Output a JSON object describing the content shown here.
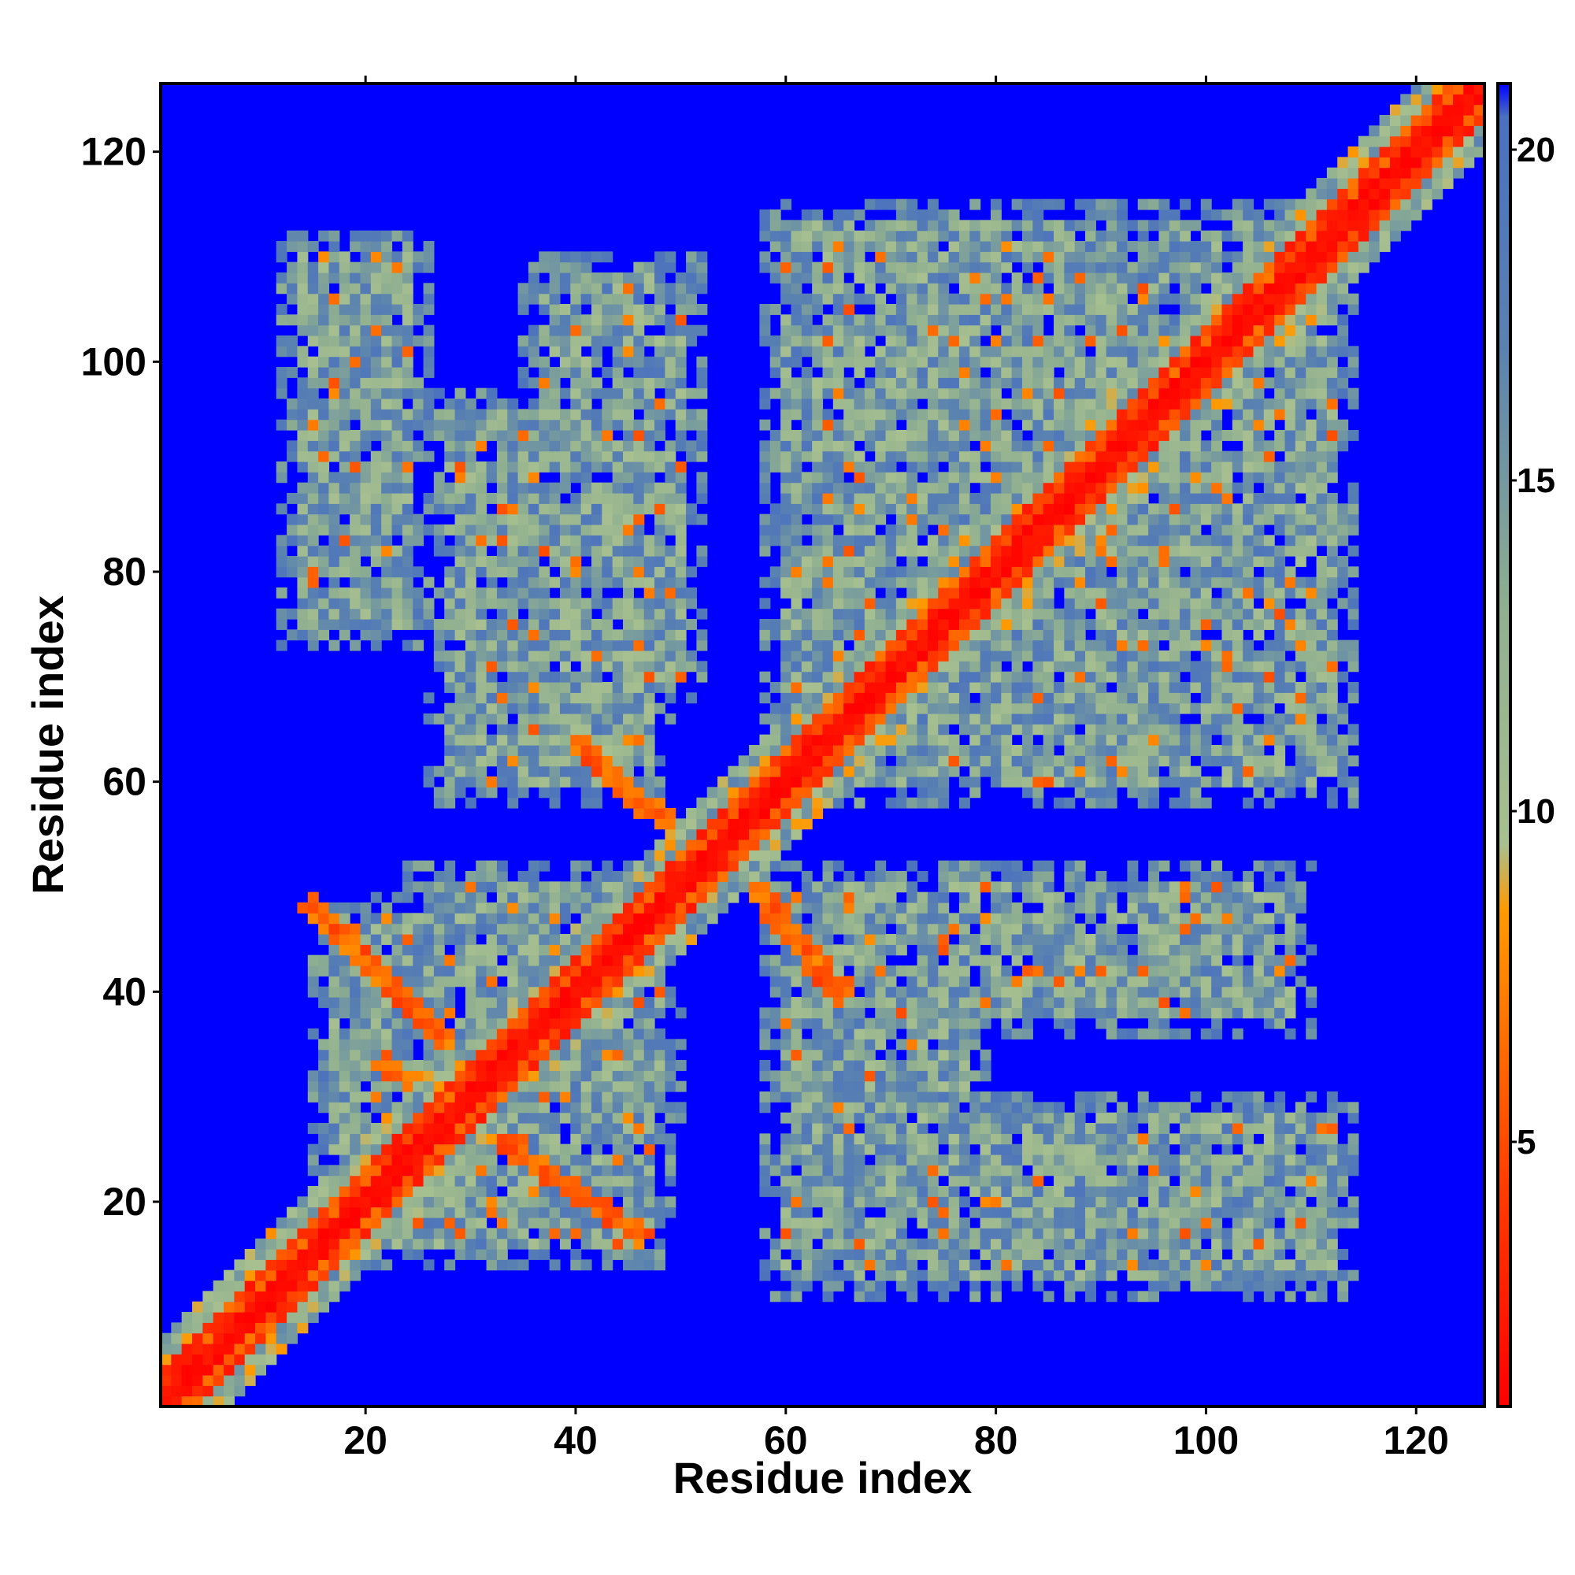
{
  "chart_data": {
    "type": "heatmap",
    "title": "",
    "xlabel": "Residue index",
    "ylabel": "Residue index",
    "xlim": [
      1,
      126
    ],
    "ylim": [
      1,
      126
    ],
    "n_residues": 126,
    "x_ticks": [
      20,
      40,
      60,
      80,
      100,
      120
    ],
    "y_ticks": [
      20,
      40,
      60,
      80,
      100,
      120
    ],
    "colorbar": {
      "range": [
        1,
        21
      ],
      "ticks": [
        5,
        10,
        15,
        20
      ],
      "stops": [
        {
          "value": 1,
          "color": "#ff0000"
        },
        {
          "value": 4.5,
          "color": "#ff4000"
        },
        {
          "value": 8.5,
          "color": "#ff9a00"
        },
        {
          "value": 9.5,
          "color": "#a8c090"
        },
        {
          "value": 13,
          "color": "#90b090"
        },
        {
          "value": 17,
          "color": "#5a82b0"
        },
        {
          "value": 20.5,
          "color": "#4a70c0"
        },
        {
          "value": 21,
          "color": "#0000ff"
        }
      ]
    },
    "background_color": "#0000ff",
    "contact_blocks": [
      {
        "x": [
          14,
          24
        ],
        "y": [
          75,
          110
        ]
      },
      {
        "x": [
          28,
          47
        ],
        "y": [
          60,
          95
        ]
      },
      {
        "x": [
          37,
          50
        ],
        "y": [
          70,
          108
        ]
      },
      {
        "x": [
          60,
          112
        ],
        "y": [
          60,
          113
        ]
      },
      {
        "x": [
          60,
          77
        ],
        "y": [
          13,
          50
        ]
      },
      {
        "x": [
          78,
          108
        ],
        "y": [
          38,
          50
        ]
      },
      {
        "x": [
          78,
          112
        ],
        "y": [
          13,
          28
        ]
      },
      {
        "x": [
          26,
          48
        ],
        "y": [
          30,
          50
        ]
      },
      {
        "x": [
          17,
          47
        ],
        "y": [
          16,
          47
        ]
      }
    ],
    "antiparallel_strands": [
      {
        "from": [
          15,
          48
        ],
        "to": [
          30,
          33
        ]
      },
      {
        "from": [
          22,
          33
        ],
        "to": [
          46,
          17
        ]
      },
      {
        "from": [
          41,
          63
        ],
        "to": [
          53,
          52
        ]
      },
      {
        "from": [
          57,
          50
        ],
        "to": [
          65,
          40
        ]
      }
    ]
  }
}
